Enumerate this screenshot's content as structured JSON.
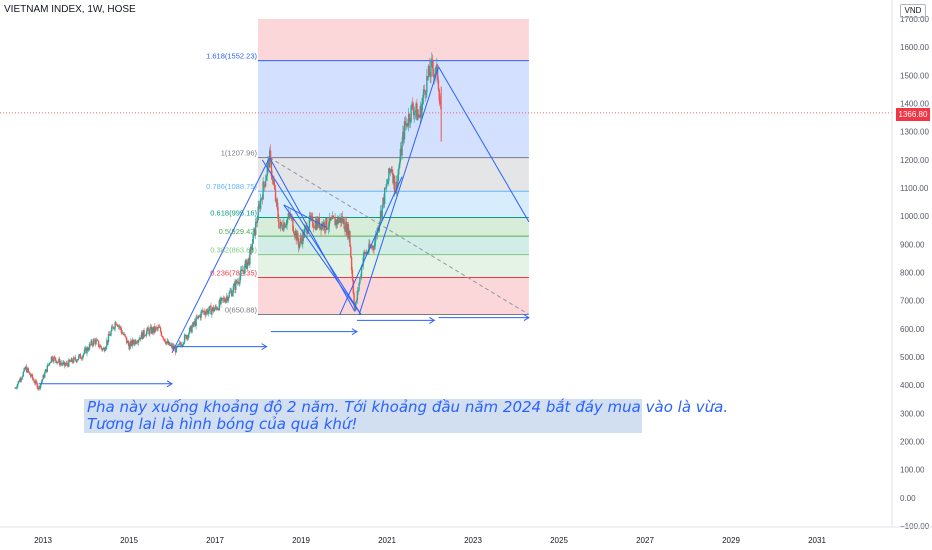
{
  "header": {
    "symbol_line": "VIETNAM INDEX, 1W, HOSE",
    "currency": "VND"
  },
  "price_tag": "1366.80",
  "annotation": {
    "line1": "Pha này xuống khoảng độ 2 năm. Tới khoảng đầu năm 2024 bắt đáy mua vào là vừa.",
    "line2": "Tương lai là hình bóng của quá khứ!"
  },
  "colors": {
    "up": "#26a69a",
    "down": "#ef5350",
    "trendline": "#2962ff",
    "dashed": "#9598a1",
    "last_price": "#f23645"
  },
  "chart_data": {
    "type": "candlestick",
    "symbol": "VIETNAM INDEX",
    "interval": "1W",
    "exchange": "HOSE",
    "ylim": [
      -120,
      1720
    ],
    "yticks": [
      -100,
      0,
      100,
      200,
      300,
      400,
      500,
      600,
      700,
      800,
      900,
      1000,
      1100,
      1200,
      1300,
      1400,
      1500,
      1600,
      1700
    ],
    "ytick_labels": [
      "−100.00",
      "0.00",
      "100.00",
      "200.00",
      "300.00",
      "400.00",
      "500.00",
      "600.00",
      "700.00",
      "800.00",
      "900.00",
      "1000.00",
      "1100.00",
      "1200.00",
      "1300.00",
      "1400.00",
      "1500.00",
      "1600.00",
      "1700.00"
    ],
    "xlim": [
      2012.3,
      2032.4
    ],
    "xticks": [
      "2013",
      "2015",
      "2017",
      "2019",
      "2021",
      "2023",
      "2025",
      "2027",
      "2029",
      "2031"
    ],
    "last_price": 1366.8,
    "price_path": [
      [
        2012.35,
        390
      ],
      [
        2012.6,
        460
      ],
      [
        2012.9,
        390
      ],
      [
        2013.2,
        500
      ],
      [
        2013.5,
        470
      ],
      [
        2013.9,
        505
      ],
      [
        2014.2,
        560
      ],
      [
        2014.4,
        525
      ],
      [
        2014.7,
        630
      ],
      [
        2015.0,
        540
      ],
      [
        2015.4,
        590
      ],
      [
        2015.7,
        600
      ],
      [
        2015.9,
        545
      ],
      [
        2016.1,
        525
      ],
      [
        2016.4,
        590
      ],
      [
        2016.7,
        660
      ],
      [
        2017.0,
        670
      ],
      [
        2017.4,
        735
      ],
      [
        2017.8,
        850
      ],
      [
        2018.05,
        1050
      ],
      [
        2018.27,
        1207.96
      ],
      [
        2018.5,
        960
      ],
      [
        2018.75,
        1000
      ],
      [
        2018.95,
        900
      ],
      [
        2019.2,
        980
      ],
      [
        2019.6,
        970
      ],
      [
        2019.95,
        990
      ],
      [
        2020.12,
        940
      ],
      [
        2020.25,
        662
      ],
      [
        2020.45,
        860
      ],
      [
        2020.7,
        900
      ],
      [
        2020.95,
        1080
      ],
      [
        2021.1,
        1180
      ],
      [
        2021.2,
        1090
      ],
      [
        2021.4,
        1310
      ],
      [
        2021.6,
        1390
      ],
      [
        2021.75,
        1350
      ],
      [
        2021.9,
        1470
      ],
      [
        2022.05,
        1530
      ],
      [
        2022.18,
        1500
      ],
      [
        2022.26,
        1366.8
      ]
    ],
    "fibonacci": {
      "from_date": "2018",
      "to_date": "2024",
      "low": 650.88,
      "high": 1207.96,
      "levels": [
        {
          "ratio": 0,
          "label": "0(650.88)",
          "value": 650.88
        },
        {
          "ratio": 0.236,
          "label": "0.236(782.35)",
          "value": 782.35
        },
        {
          "ratio": 0.382,
          "label": "0.382(863.69)",
          "value": 863.69
        },
        {
          "ratio": 0.5,
          "label": "0.5(929.42)",
          "value": 929.42
        },
        {
          "ratio": 0.618,
          "label": "0.618(995.16)",
          "value": 995.16
        },
        {
          "ratio": 0.786,
          "label": "0.786(1088.75)",
          "value": 1088.75
        },
        {
          "ratio": 1,
          "label": "1(1207.96)",
          "value": 1207.96
        },
        {
          "ratio": 1.618,
          "label": "1.618(1552.23)",
          "value": 1552.23
        }
      ]
    },
    "grid": false
  }
}
